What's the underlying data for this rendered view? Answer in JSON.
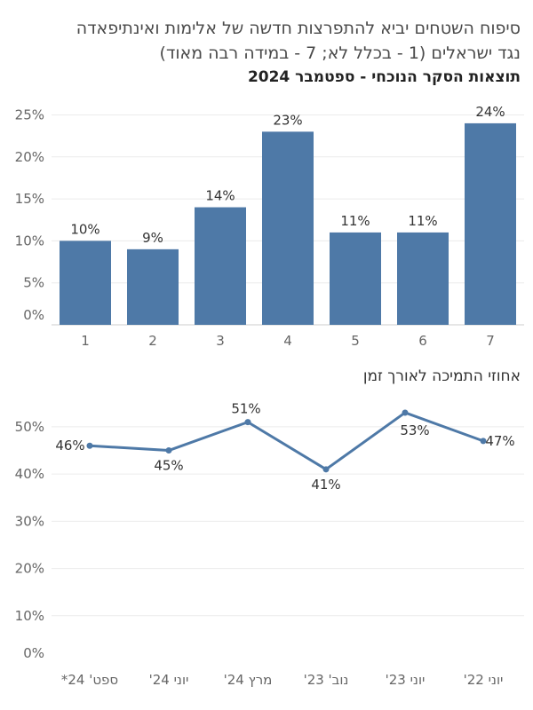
{
  "header": {
    "title_line1": "סיפוח השטחים יביא להתפרצות חדשה של אלימות ואינתיפאדה",
    "title_line2": "נגד ישראלים (1 - בכלל לא; 7 - במידה רבה מאוד)",
    "subtitle": "תוצאות הסקר הנוכחי - ספטמבר 2024"
  },
  "line_section": {
    "title": "אחוזי התמיכה לאורך זמן"
  },
  "colors": {
    "bar": "#4e79a7",
    "line": "#4e79a7",
    "grid": "#ececec"
  },
  "chart_data": [
    {
      "type": "bar",
      "title": "תוצאות הסקר הנוכחי - ספטמבר 2024",
      "categories": [
        "1",
        "2",
        "3",
        "4",
        "5",
        "6",
        "7"
      ],
      "values": [
        10,
        9,
        14,
        23,
        11,
        11,
        24
      ],
      "value_labels": [
        "10%",
        "9%",
        "14%",
        "23%",
        "11%",
        "11%",
        "24%"
      ],
      "y_ticks": [
        "0%",
        "5%",
        "10%",
        "15%",
        "20%",
        "25%"
      ],
      "y_tick_values": [
        0,
        5,
        10,
        15,
        20,
        25
      ],
      "ylim": [
        0,
        26
      ],
      "grid": true
    },
    {
      "type": "line",
      "title": "אחוזי התמיכה לאורך זמן",
      "categories": [
        "ספט' 24*",
        "יוני 24'",
        "מרץ 24'",
        "נוב' 23'",
        "יוני 23'",
        "יוני 22'"
      ],
      "values": [
        46,
        45,
        51,
        41,
        53,
        47
      ],
      "value_labels": [
        "46%",
        "45%",
        "51%",
        "41%",
        "53%",
        "47%"
      ],
      "y_ticks": [
        "0%",
        "10%",
        "20%",
        "30%",
        "40%",
        "50%"
      ],
      "y_tick_values": [
        0,
        10,
        20,
        30,
        40,
        50
      ],
      "ylim": [
        0,
        56
      ],
      "grid": true
    }
  ]
}
